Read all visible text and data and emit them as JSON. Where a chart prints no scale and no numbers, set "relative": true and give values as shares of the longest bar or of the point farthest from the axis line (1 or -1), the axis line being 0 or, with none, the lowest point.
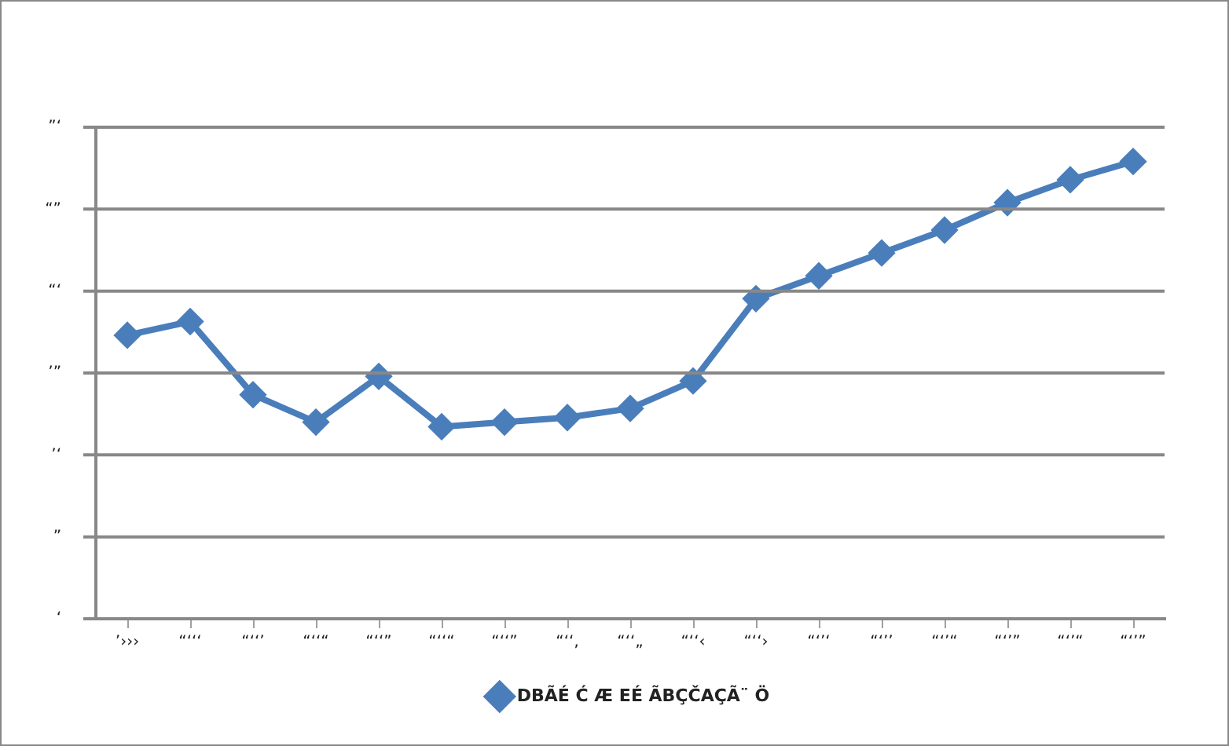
{
  "chart_data": {
    "type": "line",
    "relative": true,
    "categories": [
      "’›››",
      "“‘‘‘",
      "“‘‘’",
      "“‘‘“",
      "“‘‘”",
      "“‘‘“",
      "“‘‘”",
      "“‘‘‚",
      "“‘‘„",
      "“‘‘‹",
      "“‘‘›",
      "“‘’‘",
      "“‘’’",
      "“‘’“",
      "“‘’”",
      "“‘’“",
      "“‘’”"
    ],
    "series": [
      {
        "name": "DBÃÉ Ć Æ EÉ ÃBÇČAÇÃ¨ Ö",
        "color": "#4a7ebb",
        "values": [
          0.62,
          0.65,
          0.49,
          0.43,
          0.53,
          0.42,
          0.43,
          0.44,
          0.46,
          0.52,
          0.7,
          0.75,
          0.8,
          0.85,
          0.91,
          0.96,
          1
        ]
      }
    ],
    "annotations": [
      "‘",
      "”",
      "’‘",
      "’”",
      "“‘",
      "“”",
      "”‘"
    ],
    "grid": "y",
    "legend": "bottom",
    "marker": "diamond",
    "line_style": "solid"
  }
}
